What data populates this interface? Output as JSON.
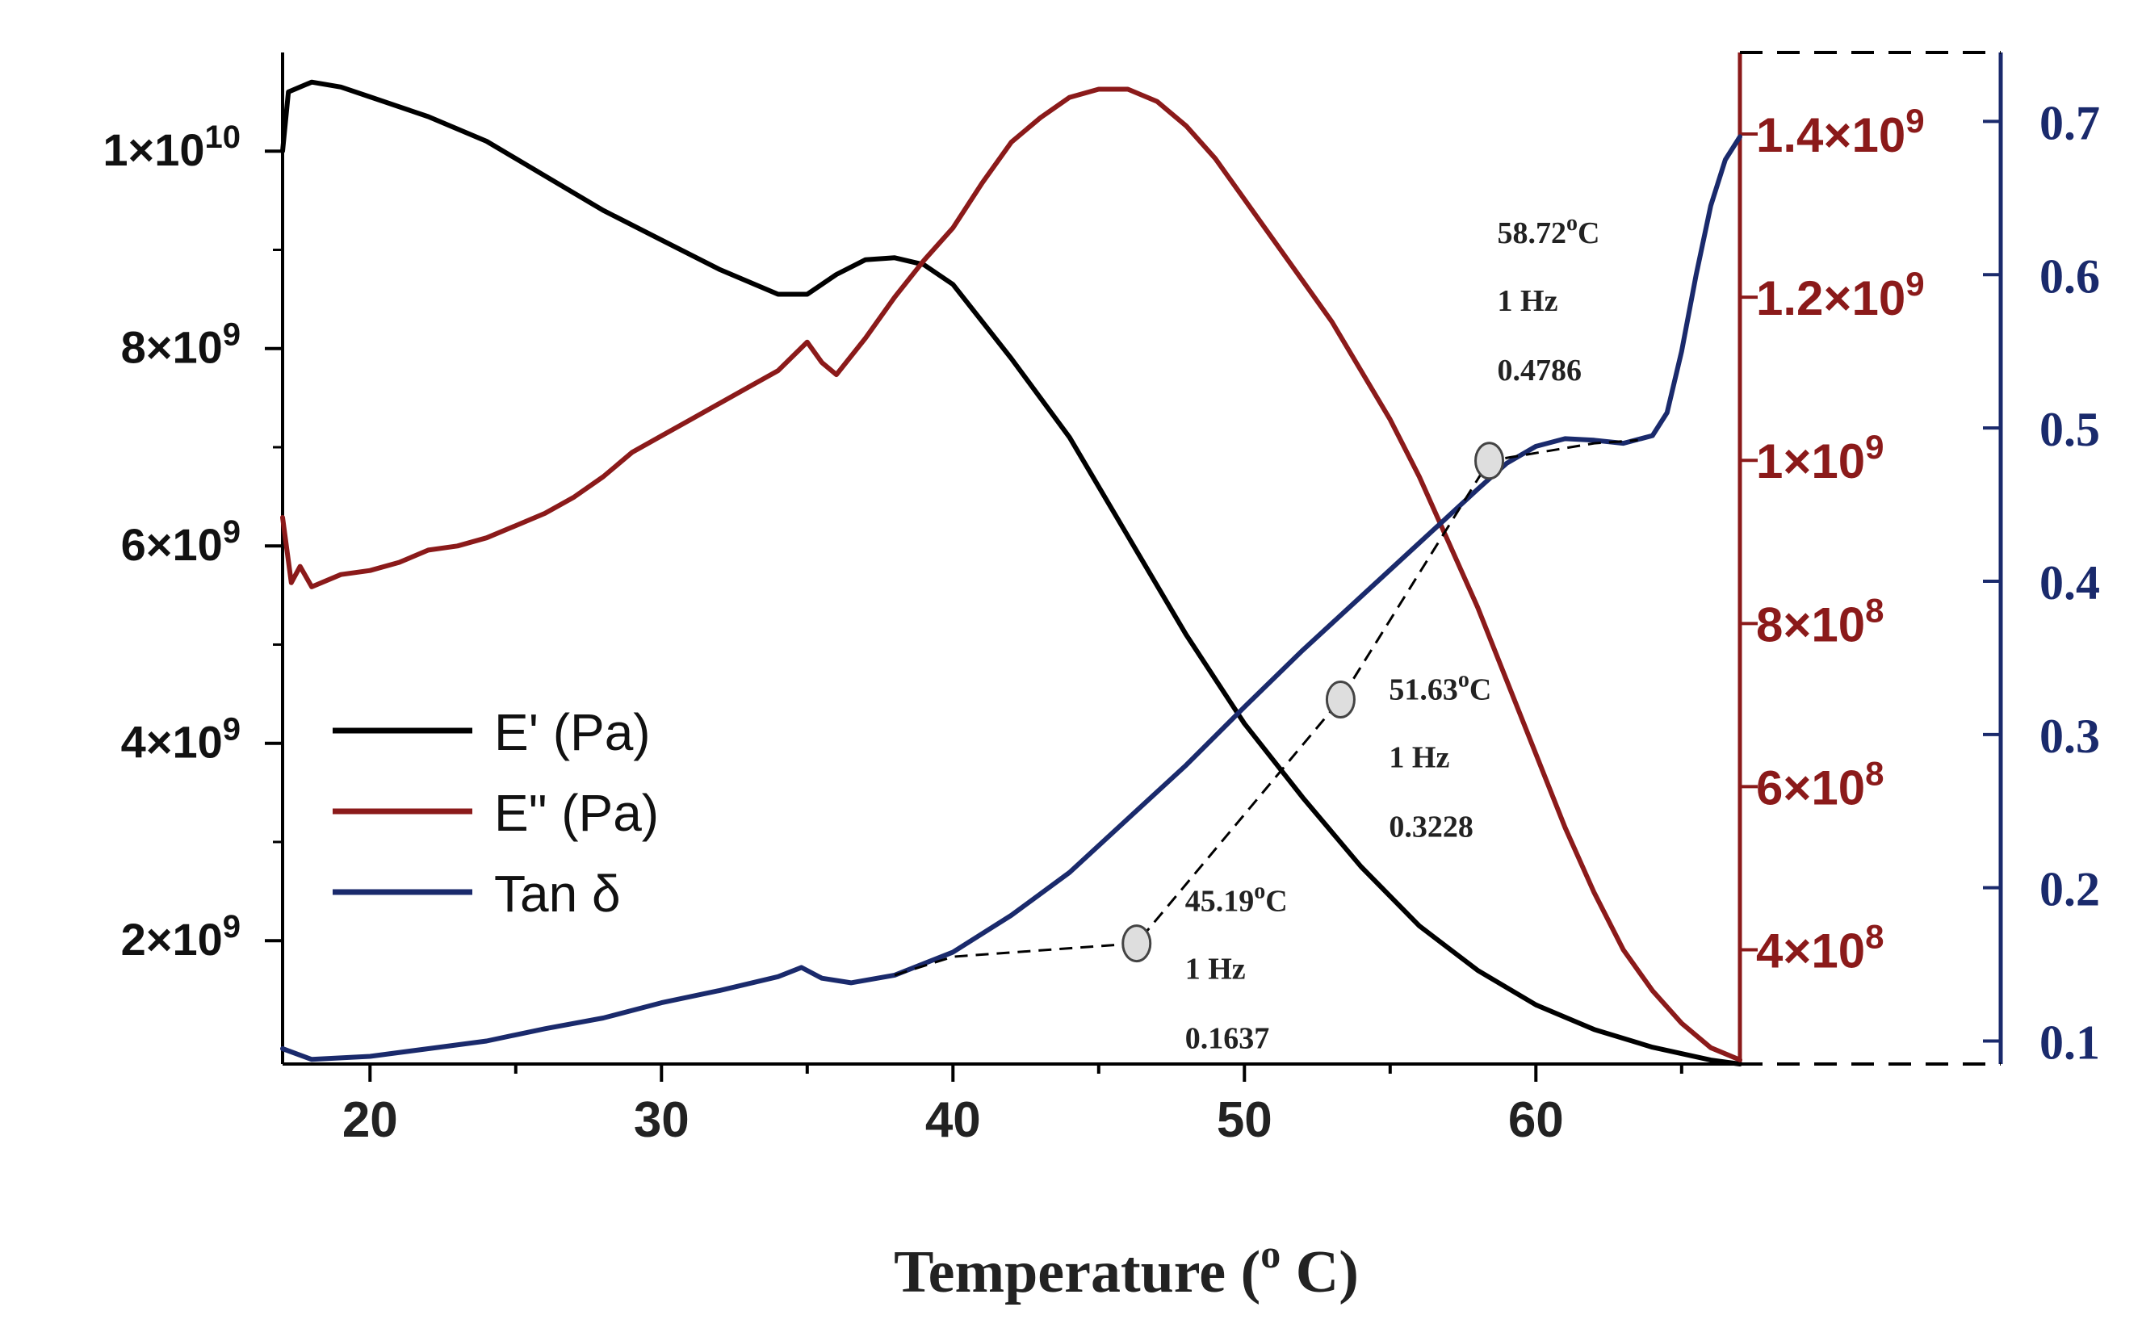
{
  "chart_data": {
    "type": "line",
    "xlabel": "Temperature (",
    "xlabel_sup": "o",
    "xlabel_end": " C)",
    "xlim": [
      17,
      67
    ],
    "xticks": [
      {
        "value": 20,
        "label": "20"
      },
      {
        "value": 30,
        "label": "30"
      },
      {
        "value": 40,
        "label": "40"
      },
      {
        "value": 50,
        "label": "50"
      },
      {
        "value": 60,
        "label": "60"
      }
    ],
    "y_left": {
      "label": "",
      "lim": [
        750000000.0,
        11000000000.0
      ],
      "color": "#000000",
      "ticks": [
        {
          "value": 10000000000.0,
          "mantissa": "1×10",
          "exp": "10"
        },
        {
          "value": 8000000000.0,
          "mantissa": "8×10",
          "exp": "9"
        },
        {
          "value": 6000000000.0,
          "mantissa": "6×10",
          "exp": "9"
        },
        {
          "value": 4000000000.0,
          "mantissa": "4×10",
          "exp": "9"
        },
        {
          "value": 2000000000.0,
          "mantissa": "2×10",
          "exp": "9"
        }
      ]
    },
    "y_right1": {
      "label": "",
      "lim": [
        260000000.0,
        1500000000.0
      ],
      "color": "#8b1a1a",
      "ticks": [
        {
          "value": 1400000000.0,
          "mantissa": "1.4×10",
          "exp": "9"
        },
        {
          "value": 1200000000.0,
          "mantissa": "1.2×10",
          "exp": "9"
        },
        {
          "value": 1000000000.0,
          "mantissa": "1×10",
          "exp": "9"
        },
        {
          "value": 800000000.0,
          "mantissa": "8×10",
          "exp": "8"
        },
        {
          "value": 600000000.0,
          "mantissa": "6×10",
          "exp": "8"
        },
        {
          "value": 400000000.0,
          "mantissa": "4×10",
          "exp": "8"
        }
      ]
    },
    "y_right2": {
      "label": "",
      "lim": [
        0.085,
        0.745
      ],
      "color": "#1a2a6c",
      "ticks": [
        {
          "value": 0.7,
          "label": "0.7"
        },
        {
          "value": 0.6,
          "label": "0.6"
        },
        {
          "value": 0.5,
          "label": "0.5"
        },
        {
          "value": 0.4,
          "label": "0.4"
        },
        {
          "value": 0.3,
          "label": "0.3"
        },
        {
          "value": 0.2,
          "label": "0.2"
        },
        {
          "value": 0.1,
          "label": "0.1"
        }
      ]
    },
    "series": [
      {
        "name": "E' (Pa)",
        "axis": "left",
        "color": "#000000",
        "x": [
          17,
          17.2,
          18,
          19,
          20,
          22,
          24,
          26,
          28,
          30,
          32,
          34,
          35,
          36,
          37,
          38,
          39,
          40,
          42,
          44,
          46,
          48,
          50,
          52,
          54,
          56,
          58,
          60,
          62,
          64,
          66,
          67
        ],
        "values": [
          10000000000.0,
          10600000000.0,
          10700000000.0,
          10650000000.0,
          10550000000.0,
          10350000000.0,
          10100000000.0,
          9750000000.0,
          9400000000.0,
          9100000000.0,
          8800000000.0,
          8550000000.0,
          8550000000.0,
          8750000000.0,
          8900000000.0,
          8920000000.0,
          8850000000.0,
          8650000000.0,
          7900000000.0,
          7100000000.0,
          6100000000.0,
          5100000000.0,
          4200000000.0,
          3450000000.0,
          2750000000.0,
          2150000000.0,
          1700000000.0,
          1350000000.0,
          1100000000.0,
          920000000.0,
          790000000.0,
          750000000.0
        ]
      },
      {
        "name": "E\" (Pa)",
        "axis": "right1",
        "color": "#8b1a1a",
        "x": [
          17,
          17.3,
          17.6,
          18,
          19,
          20,
          21,
          22,
          23,
          24,
          25,
          26,
          27,
          28,
          29,
          30,
          31,
          32,
          33,
          34,
          35,
          35.5,
          36,
          37,
          38,
          39,
          40,
          41,
          42,
          43,
          44,
          45,
          46,
          47,
          48,
          49,
          50,
          51,
          52,
          53,
          54,
          55,
          56,
          57,
          58,
          59,
          60,
          61,
          62,
          63,
          64,
          65,
          66,
          67
        ],
        "values": [
          930000000.0,
          850000000.0,
          870000000.0,
          845000000.0,
          860000000.0,
          865000000.0,
          875000000.0,
          890000000.0,
          895000000.0,
          905000000.0,
          920000000.0,
          935000000.0,
          955000000.0,
          980000000.0,
          1010000000.0,
          1030000000.0,
          1050000000.0,
          1070000000.0,
          1090000000.0,
          1110000000.0,
          1145000000.0,
          1120000000.0,
          1105000000.0,
          1150000000.0,
          1200000000.0,
          1245000000.0,
          1285000000.0,
          1340000000.0,
          1390000000.0,
          1420000000.0,
          1445000000.0,
          1455000000.0,
          1455000000.0,
          1440000000.0,
          1410000000.0,
          1370000000.0,
          1320000000.0,
          1270000000.0,
          1220000000.0,
          1170000000.0,
          1110000000.0,
          1050000000.0,
          980000000.0,
          900000000.0,
          820000000.0,
          730000000.0,
          640000000.0,
          550000000.0,
          470000000.0,
          400000000.0,
          350000000.0,
          310000000.0,
          280000000.0,
          265000000.0
        ]
      },
      {
        "name": "Tan δ",
        "axis": "right2",
        "color": "#1a2a6c",
        "x": [
          17,
          18,
          20,
          22,
          24,
          26,
          28,
          30,
          32,
          34,
          34.8,
          35.5,
          36.5,
          38,
          40,
          42,
          44,
          46,
          48,
          50,
          52,
          54,
          56,
          58,
          59,
          60,
          61,
          62,
          63,
          64,
          64.5,
          65,
          65.5,
          66,
          66.5,
          67
        ],
        "values": [
          0.095,
          0.088,
          0.09,
          0.095,
          0.1,
          0.108,
          0.115,
          0.125,
          0.133,
          0.142,
          0.148,
          0.141,
          0.138,
          0.143,
          0.158,
          0.182,
          0.21,
          0.245,
          0.28,
          0.318,
          0.355,
          0.39,
          0.425,
          0.46,
          0.477,
          0.488,
          0.493,
          0.492,
          0.49,
          0.495,
          0.51,
          0.55,
          0.6,
          0.645,
          0.675,
          0.69
        ]
      }
    ],
    "fit_line": {
      "style": "dashed",
      "color": "#000000",
      "x": [
        38,
        40,
        46.3,
        53.3,
        58.4,
        62,
        63.5
      ],
      "values": [
        0.143,
        0.155,
        0.1637,
        0.3228,
        0.4786,
        0.49,
        0.492
      ]
    },
    "markers": [
      {
        "x": 46.3,
        "y": 0.1637,
        "temp": "45.19",
        "deg": "o",
        "unit": "C",
        "freq": "1 Hz",
        "tan": "0.1637"
      },
      {
        "x": 53.3,
        "y": 0.3228,
        "temp": "51.63",
        "deg": "o",
        "unit": "C",
        "freq": "1 Hz",
        "tan": "0.3228"
      },
      {
        "x": 58.4,
        "y": 0.4786,
        "temp": "58.72",
        "deg": "o",
        "unit": "C",
        "freq": "1 Hz",
        "tan": "0.4786"
      }
    ],
    "legend": {
      "position": "left-middle",
      "entries": [
        {
          "label": "E' (Pa)",
          "color": "#000000"
        },
        {
          "label": "E\" (Pa)",
          "color": "#8b1a1a"
        },
        {
          "label": "Tan δ",
          "color": "#1a2a6c"
        }
      ]
    }
  }
}
